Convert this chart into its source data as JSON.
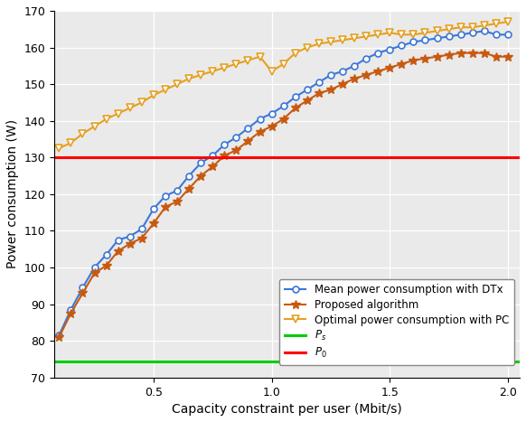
{
  "title": "",
  "xlabel": "Capacity constraint per user (Mbit/s)",
  "ylabel": "Power consumption (W)",
  "xlim": [
    0.08,
    2.05
  ],
  "ylim": [
    70,
    170
  ],
  "yticks": [
    70,
    80,
    90,
    100,
    110,
    120,
    130,
    140,
    150,
    160,
    170
  ],
  "xticks": [
    0.5,
    1.0,
    1.5,
    2.0
  ],
  "P_s": 74.5,
  "P_0": 130,
  "bg_color": "#eaeaea",
  "blue_color": "#3c78d8",
  "prop_color": "#c85a10",
  "orange_color": "#e6a020",
  "red_color": "#ff0000",
  "green_color": "#00cc00",
  "legend_labels": [
    "Mean power consumption with DTx",
    "Proposed algorithm",
    "Optimal power consumption with PC",
    "P_s",
    "P_0"
  ],
  "x": [
    0.1,
    0.15,
    0.2,
    0.25,
    0.3,
    0.35,
    0.4,
    0.45,
    0.5,
    0.55,
    0.6,
    0.65,
    0.7,
    0.75,
    0.8,
    0.85,
    0.9,
    0.95,
    1.0,
    1.05,
    1.1,
    1.15,
    1.2,
    1.25,
    1.3,
    1.35,
    1.4,
    1.45,
    1.5,
    1.55,
    1.6,
    1.65,
    1.7,
    1.75,
    1.8,
    1.85,
    1.9,
    1.95,
    2.0
  ],
  "y_dtx": [
    81.5,
    88.5,
    94.5,
    100.0,
    103.5,
    107.5,
    108.5,
    110.5,
    116.0,
    119.5,
    121.0,
    125.0,
    128.5,
    130.5,
    133.5,
    135.5,
    138.0,
    140.5,
    142.0,
    144.0,
    146.5,
    148.5,
    150.5,
    152.5,
    153.5,
    155.0,
    157.0,
    158.5,
    159.5,
    160.5,
    161.5,
    162.0,
    162.5,
    163.0,
    163.5,
    164.0,
    164.5,
    163.5,
    163.5
  ],
  "y_prop": [
    81.0,
    87.5,
    93.0,
    98.5,
    100.5,
    104.5,
    106.5,
    108.0,
    112.0,
    116.5,
    118.0,
    121.5,
    125.0,
    127.5,
    130.5,
    132.0,
    134.5,
    137.0,
    138.5,
    140.5,
    143.5,
    145.5,
    147.5,
    148.5,
    150.0,
    151.5,
    152.5,
    153.5,
    154.5,
    155.5,
    156.5,
    157.0,
    157.5,
    158.0,
    158.5,
    158.5,
    158.5,
    157.5,
    157.5
  ],
  "y_pc": [
    132.5,
    134.0,
    136.5,
    138.5,
    140.5,
    142.0,
    143.5,
    145.0,
    147.0,
    148.5,
    150.0,
    151.5,
    152.5,
    153.5,
    154.5,
    155.5,
    156.5,
    157.5,
    153.5,
    155.5,
    158.5,
    160.0,
    161.0,
    161.5,
    162.0,
    162.5,
    163.0,
    163.5,
    164.0,
    163.5,
    163.5,
    164.0,
    164.5,
    165.0,
    165.5,
    165.5,
    166.0,
    166.5,
    167.0
  ]
}
